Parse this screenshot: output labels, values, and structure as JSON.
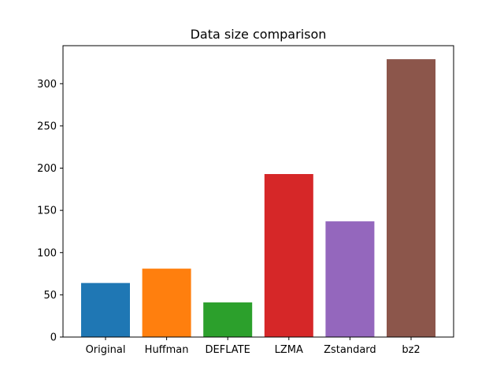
{
  "chart_data": {
    "type": "bar",
    "title": "Data size comparison",
    "xlabel": "",
    "ylabel": "",
    "categories": [
      "Original",
      "Huffman",
      "DEFLATE",
      "LZMA",
      "Zstandard",
      "bz2"
    ],
    "values": [
      64,
      81,
      41,
      193,
      137,
      329
    ],
    "colors": [
      "#1f77b4",
      "#ff7f0e",
      "#2ca02c",
      "#d62728",
      "#9467bd",
      "#8c564b"
    ],
    "ylim": [
      0,
      345
    ],
    "yticks": [
      0,
      50,
      100,
      150,
      200,
      250,
      300
    ],
    "grid": false,
    "legend": "none"
  }
}
